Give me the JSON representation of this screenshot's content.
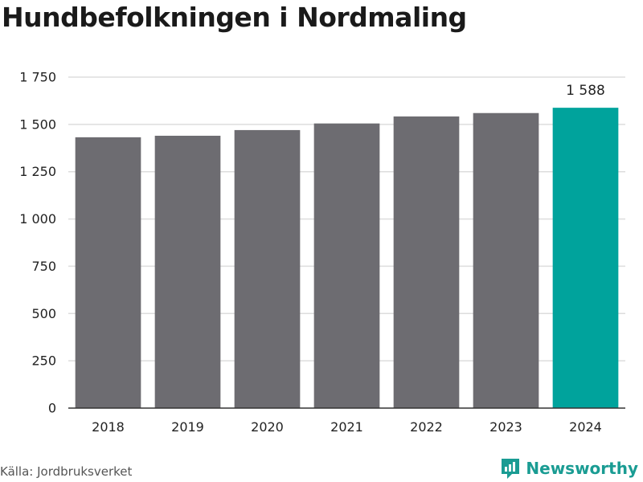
{
  "title": "Hundbefolkningen i Nordmaling",
  "source": "Källa: Jordbruksverket",
  "brand": {
    "name": "Newsworthy",
    "icon": "newsworthy-logo-icon"
  },
  "colors": {
    "bar": "#6d6c71",
    "highlight": "#00a39c",
    "grid": "#dddddd",
    "axis": "#333333",
    "brand": "#1a9c93"
  },
  "chart_data": {
    "type": "bar",
    "categories": [
      "2018",
      "2019",
      "2020",
      "2021",
      "2022",
      "2023",
      "2024"
    ],
    "values": [
      1432,
      1440,
      1470,
      1505,
      1542,
      1560,
      1588
    ],
    "ylim": [
      0,
      1750
    ],
    "yticks": [
      0,
      250,
      500,
      750,
      1000,
      1250,
      1500,
      1750
    ],
    "ytick_labels": [
      "0",
      "250",
      "500",
      "750",
      "1 000",
      "1 250",
      "1 500",
      "1 750"
    ],
    "highlight_index": 6,
    "data_labels": [
      {
        "index": 6,
        "text": "1 588"
      }
    ],
    "grid": true,
    "legend": "none"
  }
}
